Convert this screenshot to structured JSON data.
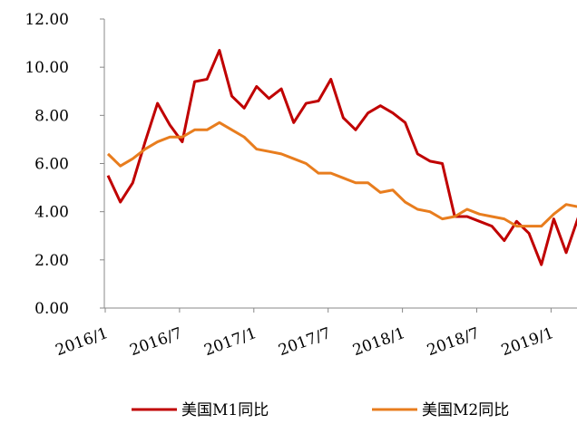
{
  "chart_data": {
    "type": "line",
    "categories": [
      "2016/1",
      null,
      null,
      null,
      null,
      null,
      "2016/7",
      null,
      null,
      null,
      null,
      null,
      "2017/1",
      null,
      null,
      null,
      null,
      null,
      "2017/7",
      null,
      null,
      null,
      null,
      null,
      "2018/1",
      null,
      null,
      null,
      null,
      null,
      "2018/7",
      null,
      null,
      null,
      null,
      null,
      "2019/1",
      null,
      null
    ],
    "series": [
      {
        "name": "美国M1同比",
        "color": "#c00000",
        "values": [
          5.5,
          4.4,
          5.2,
          6.9,
          8.5,
          7.6,
          6.9,
          9.4,
          9.5,
          10.7,
          8.8,
          8.3,
          9.2,
          8.7,
          9.1,
          7.7,
          8.5,
          8.6,
          9.5,
          7.9,
          7.4,
          8.1,
          8.4,
          8.1,
          7.7,
          6.4,
          6.1,
          6.0,
          3.8,
          3.8,
          3.6,
          3.4,
          2.8,
          3.6,
          3.1,
          1.8,
          3.7,
          2.3,
          3.8
        ]
      },
      {
        "name": "美国M2同比",
        "color": "#e87d1e",
        "values": [
          6.4,
          5.9,
          6.2,
          6.6,
          6.9,
          7.1,
          7.1,
          7.4,
          7.4,
          7.7,
          7.4,
          7.1,
          6.6,
          6.5,
          6.4,
          6.2,
          6.0,
          5.6,
          5.6,
          5.4,
          5.2,
          5.2,
          4.8,
          4.9,
          4.4,
          4.1,
          4.0,
          3.7,
          3.8,
          4.1,
          3.9,
          3.8,
          3.7,
          3.4,
          3.4,
          3.4,
          3.9,
          4.3,
          4.2
        ]
      }
    ],
    "ylim": [
      0,
      12
    ],
    "yticks": [
      {
        "value": 0,
        "label": "0.00"
      },
      {
        "value": 2,
        "label": "2.00"
      },
      {
        "value": 4,
        "label": "4.00"
      },
      {
        "value": 6,
        "label": "6.00"
      },
      {
        "value": 8,
        "label": "8.00"
      },
      {
        "value": 10,
        "label": "10.00"
      },
      {
        "value": 12,
        "label": "12.00"
      }
    ],
    "legend": "bottom"
  }
}
